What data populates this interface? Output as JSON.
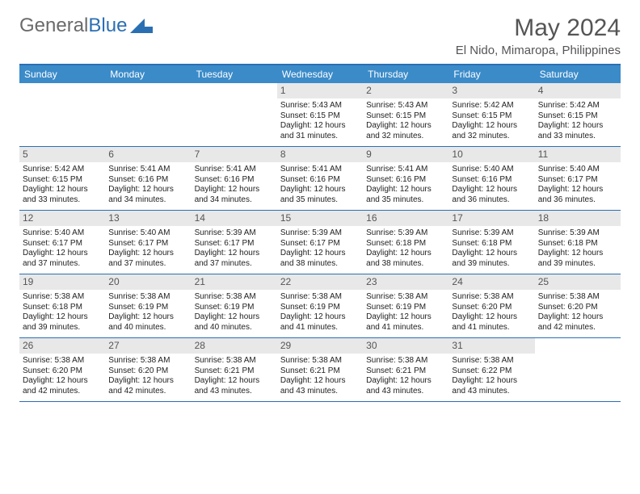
{
  "logo": {
    "text1": "General",
    "text2": "Blue"
  },
  "title": "May 2024",
  "location": "El Nido, Mimaropa, Philippines",
  "colors": {
    "header_bg": "#3b8bc9",
    "rule": "#2b6fb3",
    "daynum_bg": "#e8e8e8",
    "text": "#222222",
    "title_text": "#555555"
  },
  "day_headers": [
    "Sunday",
    "Monday",
    "Tuesday",
    "Wednesday",
    "Thursday",
    "Friday",
    "Saturday"
  ],
  "weeks": [
    [
      {
        "empty": true
      },
      {
        "empty": true
      },
      {
        "empty": true
      },
      {
        "num": "1",
        "sunrise": "5:43 AM",
        "sunset": "6:15 PM",
        "daylight": "12 hours and 31 minutes."
      },
      {
        "num": "2",
        "sunrise": "5:43 AM",
        "sunset": "6:15 PM",
        "daylight": "12 hours and 32 minutes."
      },
      {
        "num": "3",
        "sunrise": "5:42 AM",
        "sunset": "6:15 PM",
        "daylight": "12 hours and 32 minutes."
      },
      {
        "num": "4",
        "sunrise": "5:42 AM",
        "sunset": "6:15 PM",
        "daylight": "12 hours and 33 minutes."
      }
    ],
    [
      {
        "num": "5",
        "sunrise": "5:42 AM",
        "sunset": "6:15 PM",
        "daylight": "12 hours and 33 minutes."
      },
      {
        "num": "6",
        "sunrise": "5:41 AM",
        "sunset": "6:16 PM",
        "daylight": "12 hours and 34 minutes."
      },
      {
        "num": "7",
        "sunrise": "5:41 AM",
        "sunset": "6:16 PM",
        "daylight": "12 hours and 34 minutes."
      },
      {
        "num": "8",
        "sunrise": "5:41 AM",
        "sunset": "6:16 PM",
        "daylight": "12 hours and 35 minutes."
      },
      {
        "num": "9",
        "sunrise": "5:41 AM",
        "sunset": "6:16 PM",
        "daylight": "12 hours and 35 minutes."
      },
      {
        "num": "10",
        "sunrise": "5:40 AM",
        "sunset": "6:16 PM",
        "daylight": "12 hours and 36 minutes."
      },
      {
        "num": "11",
        "sunrise": "5:40 AM",
        "sunset": "6:17 PM",
        "daylight": "12 hours and 36 minutes."
      }
    ],
    [
      {
        "num": "12",
        "sunrise": "5:40 AM",
        "sunset": "6:17 PM",
        "daylight": "12 hours and 37 minutes."
      },
      {
        "num": "13",
        "sunrise": "5:40 AM",
        "sunset": "6:17 PM",
        "daylight": "12 hours and 37 minutes."
      },
      {
        "num": "14",
        "sunrise": "5:39 AM",
        "sunset": "6:17 PM",
        "daylight": "12 hours and 37 minutes."
      },
      {
        "num": "15",
        "sunrise": "5:39 AM",
        "sunset": "6:17 PM",
        "daylight": "12 hours and 38 minutes."
      },
      {
        "num": "16",
        "sunrise": "5:39 AM",
        "sunset": "6:18 PM",
        "daylight": "12 hours and 38 minutes."
      },
      {
        "num": "17",
        "sunrise": "5:39 AM",
        "sunset": "6:18 PM",
        "daylight": "12 hours and 39 minutes."
      },
      {
        "num": "18",
        "sunrise": "5:39 AM",
        "sunset": "6:18 PM",
        "daylight": "12 hours and 39 minutes."
      }
    ],
    [
      {
        "num": "19",
        "sunrise": "5:38 AM",
        "sunset": "6:18 PM",
        "daylight": "12 hours and 39 minutes."
      },
      {
        "num": "20",
        "sunrise": "5:38 AM",
        "sunset": "6:19 PM",
        "daylight": "12 hours and 40 minutes."
      },
      {
        "num": "21",
        "sunrise": "5:38 AM",
        "sunset": "6:19 PM",
        "daylight": "12 hours and 40 minutes."
      },
      {
        "num": "22",
        "sunrise": "5:38 AM",
        "sunset": "6:19 PM",
        "daylight": "12 hours and 41 minutes."
      },
      {
        "num": "23",
        "sunrise": "5:38 AM",
        "sunset": "6:19 PM",
        "daylight": "12 hours and 41 minutes."
      },
      {
        "num": "24",
        "sunrise": "5:38 AM",
        "sunset": "6:20 PM",
        "daylight": "12 hours and 41 minutes."
      },
      {
        "num": "25",
        "sunrise": "5:38 AM",
        "sunset": "6:20 PM",
        "daylight": "12 hours and 42 minutes."
      }
    ],
    [
      {
        "num": "26",
        "sunrise": "5:38 AM",
        "sunset": "6:20 PM",
        "daylight": "12 hours and 42 minutes."
      },
      {
        "num": "27",
        "sunrise": "5:38 AM",
        "sunset": "6:20 PM",
        "daylight": "12 hours and 42 minutes."
      },
      {
        "num": "28",
        "sunrise": "5:38 AM",
        "sunset": "6:21 PM",
        "daylight": "12 hours and 43 minutes."
      },
      {
        "num": "29",
        "sunrise": "5:38 AM",
        "sunset": "6:21 PM",
        "daylight": "12 hours and 43 minutes."
      },
      {
        "num": "30",
        "sunrise": "5:38 AM",
        "sunset": "6:21 PM",
        "daylight": "12 hours and 43 minutes."
      },
      {
        "num": "31",
        "sunrise": "5:38 AM",
        "sunset": "6:22 PM",
        "daylight": "12 hours and 43 minutes."
      },
      {
        "empty": true
      }
    ]
  ],
  "labels": {
    "sunrise_prefix": "Sunrise: ",
    "sunset_prefix": "Sunset: ",
    "daylight_prefix": "Daylight: "
  }
}
